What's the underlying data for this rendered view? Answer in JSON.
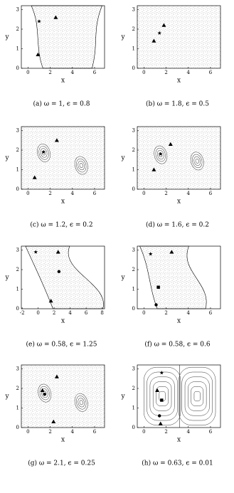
{
  "panels": [
    {
      "caption": "(a) ω = 1, ϵ = 0.8",
      "xlabel": "x",
      "ylabel": "y",
      "xlim": [
        -0.6,
        6.9
      ],
      "ylim": [
        0,
        3.2
      ],
      "xticks": [
        0,
        2,
        4,
        6
      ],
      "yticks": [
        0,
        1,
        2,
        3
      ],
      "markers": [
        {
          "shape": "star",
          "x": 1.0,
          "y": 2.4
        },
        {
          "shape": "triangle",
          "x": 2.5,
          "y": 2.6
        },
        {
          "shape": "triangle",
          "x": 0.9,
          "y": 0.7
        }
      ]
    },
    {
      "caption": "(b) ω = 1.8, ϵ = 0.5",
      "xlabel": "x",
      "ylabel": "y",
      "xlim": [
        -0.6,
        6.9
      ],
      "ylim": [
        0,
        3.2
      ],
      "xticks": [
        0,
        2,
        4,
        6
      ],
      "yticks": [
        0,
        1,
        2,
        3
      ],
      "markers": [
        {
          "shape": "triangle",
          "x": 1.8,
          "y": 2.2
        },
        {
          "shape": "star",
          "x": 1.4,
          "y": 1.8
        },
        {
          "shape": "triangle",
          "x": 0.9,
          "y": 1.4
        }
      ]
    },
    {
      "caption": "(c) ω = 1.2, ϵ = 0.2",
      "xlabel": "x",
      "ylabel": "y",
      "xlim": [
        -0.6,
        6.9
      ],
      "ylim": [
        0,
        3.2
      ],
      "xticks": [
        0,
        2,
        4,
        6
      ],
      "yticks": [
        0,
        1,
        2,
        3
      ],
      "markers": [
        {
          "shape": "star",
          "x": 1.4,
          "y": 1.9
        },
        {
          "shape": "triangle",
          "x": 2.6,
          "y": 2.5
        },
        {
          "shape": "triangle",
          "x": 0.6,
          "y": 0.6
        }
      ]
    },
    {
      "caption": "(d) ω = 1.6, ϵ = 0.2",
      "xlabel": "x",
      "ylabel": "y",
      "xlim": [
        -0.6,
        6.9
      ],
      "ylim": [
        0,
        3.2
      ],
      "xticks": [
        0,
        2,
        4,
        6
      ],
      "yticks": [
        0,
        1,
        2,
        3
      ],
      "markers": [
        {
          "shape": "star",
          "x": 1.5,
          "y": 1.8
        },
        {
          "shape": "triangle",
          "x": 2.4,
          "y": 2.3
        },
        {
          "shape": "triangle",
          "x": 0.9,
          "y": 1.0
        }
      ]
    },
    {
      "caption": "(e) ω = 0.58, ϵ = 1.25",
      "xlabel": "x",
      "ylabel": "y",
      "xlim": [
        -2.1,
        8.3
      ],
      "ylim": [
        0,
        3.2
      ],
      "xticks": [
        -2,
        0,
        2,
        4,
        6,
        8
      ],
      "yticks": [
        0,
        1,
        2,
        3
      ],
      "markers": [
        {
          "shape": "star",
          "x": -0.3,
          "y": 2.9
        },
        {
          "shape": "triangle",
          "x": 2.5,
          "y": 2.9
        },
        {
          "shape": "circle",
          "x": 2.6,
          "y": 1.9
        },
        {
          "shape": "triangle",
          "x": 1.6,
          "y": 0.4
        }
      ]
    },
    {
      "caption": "(f) ω = 0.58, ϵ = 0.6",
      "xlabel": "x",
      "ylabel": "y",
      "xlim": [
        -0.6,
        6.9
      ],
      "ylim": [
        0,
        3.2
      ],
      "xticks": [
        0,
        2,
        4,
        6
      ],
      "yticks": [
        0,
        1,
        2,
        3
      ],
      "markers": [
        {
          "shape": "star",
          "x": 0.6,
          "y": 2.8
        },
        {
          "shape": "triangle",
          "x": 2.5,
          "y": 2.9
        },
        {
          "shape": "square",
          "x": 1.3,
          "y": 1.1
        },
        {
          "shape": "circle",
          "x": 1.1,
          "y": 0.2
        }
      ]
    },
    {
      "caption": "(g) ω = 2.1, ϵ = 0.25",
      "xlabel": "x",
      "ylabel": "y",
      "xlim": [
        -0.6,
        6.9
      ],
      "ylim": [
        0,
        3.2
      ],
      "xticks": [
        0,
        2,
        4,
        6
      ],
      "yticks": [
        0,
        1,
        2,
        3
      ],
      "markers": [
        {
          "shape": "triangle",
          "x": 1.3,
          "y": 1.9
        },
        {
          "shape": "circle",
          "x": 1.5,
          "y": 1.7
        },
        {
          "shape": "triangle",
          "x": 2.6,
          "y": 2.6
        },
        {
          "shape": "triangle",
          "x": 2.3,
          "y": 0.3
        }
      ]
    },
    {
      "caption": "(h) ω = 0.63, ϵ = 0.01",
      "xlabel": "x",
      "ylabel": "y",
      "xlim": [
        -0.6,
        6.9
      ],
      "ylim": [
        0,
        3.2
      ],
      "xticks": [
        0,
        2,
        4,
        6
      ],
      "yticks": [
        0,
        1,
        2,
        3
      ],
      "markers": [
        {
          "shape": "star",
          "x": 1.6,
          "y": 2.8
        },
        {
          "shape": "triangle",
          "x": 1.2,
          "y": 1.9
        },
        {
          "shape": "square",
          "x": 1.6,
          "y": 1.4
        },
        {
          "shape": "circle",
          "x": 1.4,
          "y": 0.6
        },
        {
          "shape": "triangle",
          "x": 1.5,
          "y": 0.2
        }
      ]
    }
  ]
}
